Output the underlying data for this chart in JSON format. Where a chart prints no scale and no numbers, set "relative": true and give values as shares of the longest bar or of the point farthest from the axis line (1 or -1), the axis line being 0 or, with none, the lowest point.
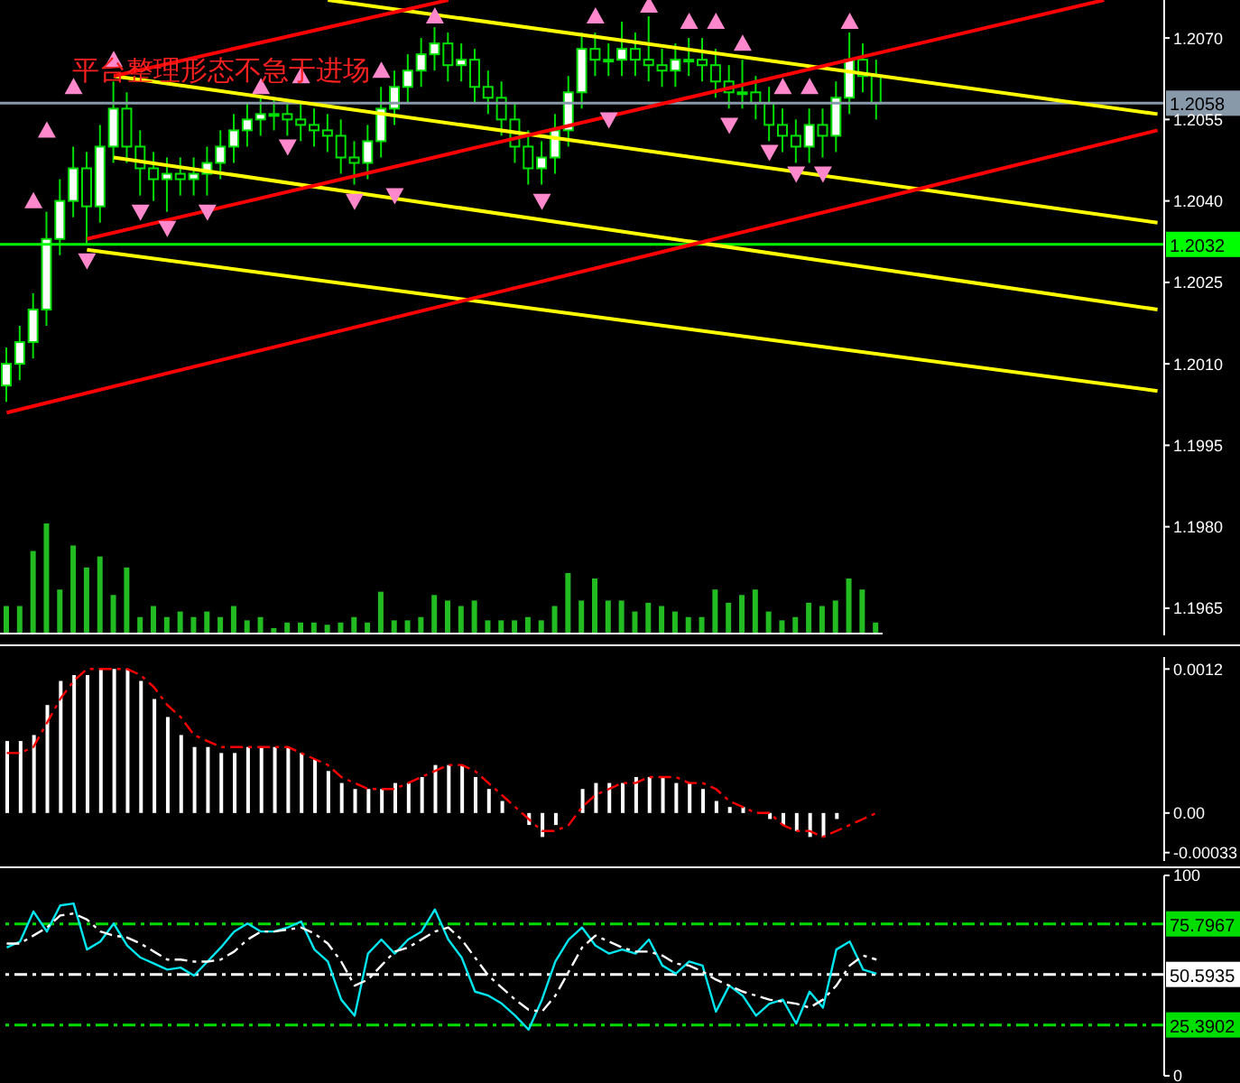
{
  "chart_data": [
    {
      "type": "candlestick",
      "color": "#00e000",
      "tick_labels": "y",
      "annotations": [
        "平台整理形态不急于进场"
      ],
      "categories": [
        null,
        null,
        null,
        null,
        null,
        null,
        null,
        null,
        null,
        null,
        null,
        null,
        null,
        null,
        null,
        null,
        null,
        null,
        null,
        null,
        null,
        null,
        null,
        null,
        null,
        null,
        null,
        null,
        null,
        null,
        null,
        null,
        null,
        null,
        null,
        null,
        null,
        null,
        null,
        null,
        null,
        null,
        null,
        null,
        null,
        null,
        null,
        null,
        null,
        null,
        null,
        null,
        null,
        null,
        null,
        null,
        null,
        null,
        null,
        null,
        null,
        null,
        null,
        null,
        null,
        null,
        null,
        null,
        null,
        null,
        null,
        null,
        null,
        null,
        null,
        null,
        null,
        null,
        null,
        null,
        null,
        null,
        null,
        null,
        null,
        null,
        null
      ],
      "ohlc": [
        [
          1.2006,
          1.2013,
          1.2003,
          1.201
        ],
        [
          1.201,
          1.2017,
          1.2007,
          1.2014
        ],
        [
          1.2014,
          1.2023,
          1.2011,
          1.202
        ],
        [
          1.202,
          1.2038,
          1.2017,
          1.2033
        ],
        [
          1.2033,
          1.2044,
          1.203,
          1.204
        ],
        [
          1.204,
          1.205,
          1.2037,
          1.2046
        ],
        [
          1.2046,
          1.2049,
          1.2032,
          1.2039
        ],
        [
          1.2039,
          1.2054,
          1.2036,
          1.205
        ],
        [
          1.205,
          1.2062,
          1.2047,
          1.2057
        ],
        [
          1.2057,
          1.206,
          1.2047,
          1.205
        ],
        [
          1.205,
          1.2053,
          1.2041,
          1.2046
        ],
        [
          1.2046,
          1.2049,
          1.204,
          1.2044
        ],
        [
          1.2044,
          1.2048,
          1.2038,
          1.2045
        ],
        [
          1.2045,
          1.2048,
          1.2041,
          1.2044
        ],
        [
          1.2044,
          1.2048,
          1.2041,
          1.2045
        ],
        [
          1.2045,
          1.205,
          1.2041,
          1.2047
        ],
        [
          1.2047,
          1.2053,
          1.2044,
          1.205
        ],
        [
          1.205,
          1.2056,
          1.2047,
          1.2053
        ],
        [
          1.2053,
          1.2058,
          1.205,
          1.2055
        ],
        [
          1.2055,
          1.2059,
          1.2052,
          1.2056
        ],
        [
          1.2056,
          1.2059,
          1.2053,
          1.2056
        ],
        [
          1.2056,
          1.2058,
          1.2052,
          1.2055
        ],
        [
          1.2055,
          1.2058,
          1.2051,
          1.2054
        ],
        [
          1.2054,
          1.2057,
          1.205,
          1.2053
        ],
        [
          1.2053,
          1.2056,
          1.2049,
          1.2052
        ],
        [
          1.2052,
          1.2055,
          1.2045,
          1.2048
        ],
        [
          1.2048,
          1.2051,
          1.2043,
          1.2047
        ],
        [
          1.2047,
          1.2054,
          1.2044,
          1.2051
        ],
        [
          1.2051,
          1.2061,
          1.2048,
          1.2057
        ],
        [
          1.2057,
          1.2064,
          1.2054,
          1.2061
        ],
        [
          1.2061,
          1.2067,
          1.2058,
          1.2064
        ],
        [
          1.2064,
          1.207,
          1.2061,
          1.2067
        ],
        [
          1.2067,
          1.2072,
          1.2064,
          1.2069
        ],
        [
          1.2069,
          1.2071,
          1.2062,
          1.2065
        ],
        [
          1.2065,
          1.2069,
          1.2062,
          1.2066
        ],
        [
          1.2066,
          1.2068,
          1.2058,
          1.2061
        ],
        [
          1.2061,
          1.2064,
          1.2056,
          1.2059
        ],
        [
          1.2059,
          1.2062,
          1.2052,
          1.2055
        ],
        [
          1.2055,
          1.2058,
          1.2047,
          1.205
        ],
        [
          1.205,
          1.2053,
          1.2043,
          1.2046
        ],
        [
          1.2046,
          1.2051,
          1.2043,
          1.2048
        ],
        [
          1.2048,
          1.2056,
          1.2045,
          1.2053
        ],
        [
          1.2053,
          1.2063,
          1.205,
          1.206
        ],
        [
          1.206,
          1.2071,
          1.2057,
          1.2068
        ],
        [
          1.2068,
          1.2071,
          1.2063,
          1.2066
        ],
        [
          1.2066,
          1.2069,
          1.2063,
          1.2066
        ],
        [
          1.2066,
          1.2073,
          1.2063,
          1.2068
        ],
        [
          1.2068,
          1.2071,
          1.2063,
          1.2066
        ],
        [
          1.2066,
          1.2074,
          1.2062,
          1.2065
        ],
        [
          1.2065,
          1.2068,
          1.2061,
          1.2064
        ],
        [
          1.2064,
          1.2069,
          1.2061,
          1.2066
        ],
        [
          1.2066,
          1.207,
          1.2063,
          1.2066
        ],
        [
          1.2066,
          1.207,
          1.2062,
          1.2065
        ],
        [
          1.2065,
          1.2068,
          1.2059,
          1.2062
        ],
        [
          1.2062,
          1.2065,
          1.2057,
          1.206
        ],
        [
          1.206,
          1.2066,
          1.2057,
          1.206
        ],
        [
          1.206,
          1.2063,
          1.2055,
          1.2058
        ],
        [
          1.2058,
          1.2061,
          1.2051,
          1.2054
        ],
        [
          1.2054,
          1.2057,
          1.2049,
          1.2052
        ],
        [
          1.2052,
          1.2055,
          1.2047,
          1.205
        ],
        [
          1.205,
          1.2057,
          1.2047,
          1.2054
        ],
        [
          1.2054,
          1.2057,
          1.2048,
          1.2052
        ],
        [
          1.2052,
          1.2062,
          1.2049,
          1.2059
        ],
        [
          1.2059,
          1.2071,
          1.2056,
          1.2066
        ],
        [
          1.2066,
          1.2069,
          1.206,
          1.2063
        ],
        [
          1.2063,
          1.2066,
          1.2055,
          1.2058
        ],
        null,
        null,
        null,
        null,
        null,
        null,
        null,
        null,
        null,
        null,
        null,
        null,
        null,
        null,
        null,
        null,
        null,
        null,
        null,
        null,
        null
      ],
      "series": [
        {
          "type": "line",
          "color": "#ffff00",
          "values": [
            null,
            null,
            null,
            null,
            null,
            null,
            null,
            null,
            null,
            null,
            null,
            null,
            null,
            null,
            null,
            null,
            null,
            null,
            null,
            null,
            null,
            null,
            null,
            null,
            1.2077,
            null,
            null,
            null,
            null,
            null,
            null,
            null,
            null,
            null,
            null,
            null,
            null,
            null,
            null,
            null,
            null,
            null,
            null,
            null,
            null,
            null,
            null,
            null,
            null,
            null,
            null,
            null,
            null,
            null,
            null,
            null,
            null,
            null,
            null,
            null,
            null,
            null,
            null,
            null,
            null,
            null,
            null,
            null,
            null,
            null,
            null,
            null,
            null,
            null,
            null,
            null,
            null,
            null,
            null,
            null,
            null,
            null,
            null,
            null,
            null,
            null,
            1.2056
          ]
        },
        {
          "type": "line",
          "color": "#ffff00",
          "values": [
            null,
            null,
            null,
            null,
            null,
            null,
            null,
            null,
            1.2063,
            null,
            null,
            null,
            null,
            null,
            null,
            null,
            null,
            null,
            null,
            null,
            null,
            null,
            null,
            null,
            null,
            null,
            null,
            null,
            null,
            null,
            null,
            null,
            null,
            null,
            null,
            null,
            null,
            null,
            null,
            null,
            null,
            null,
            null,
            null,
            null,
            null,
            null,
            null,
            null,
            null,
            null,
            null,
            null,
            null,
            null,
            null,
            null,
            null,
            null,
            null,
            null,
            null,
            null,
            null,
            null,
            null,
            null,
            null,
            null,
            null,
            null,
            null,
            null,
            null,
            null,
            null,
            null,
            null,
            null,
            null,
            null,
            null,
            null,
            null,
            null,
            null,
            1.2036
          ]
        },
        {
          "type": "line",
          "color": "#ffff00",
          "values": [
            null,
            null,
            null,
            null,
            null,
            null,
            null,
            null,
            1.2048,
            null,
            null,
            null,
            null,
            null,
            null,
            null,
            null,
            null,
            null,
            null,
            null,
            null,
            null,
            null,
            null,
            null,
            null,
            null,
            null,
            null,
            null,
            null,
            null,
            null,
            null,
            null,
            null,
            null,
            null,
            null,
            null,
            null,
            null,
            null,
            null,
            null,
            null,
            null,
            null,
            null,
            null,
            null,
            null,
            null,
            null,
            null,
            null,
            null,
            null,
            null,
            null,
            null,
            null,
            null,
            null,
            null,
            null,
            null,
            null,
            null,
            null,
            null,
            null,
            null,
            null,
            null,
            null,
            null,
            null,
            null,
            null,
            null,
            null,
            null,
            null,
            null,
            1.202
          ]
        },
        {
          "type": "line",
          "color": "#ffff00",
          "values": [
            null,
            null,
            null,
            null,
            null,
            null,
            1.2031,
            null,
            null,
            null,
            null,
            null,
            null,
            null,
            null,
            null,
            null,
            null,
            null,
            null,
            null,
            null,
            null,
            null,
            null,
            null,
            null,
            null,
            null,
            null,
            null,
            null,
            null,
            null,
            null,
            null,
            null,
            null,
            null,
            null,
            null,
            null,
            null,
            null,
            null,
            null,
            null,
            null,
            null,
            null,
            null,
            null,
            null,
            null,
            null,
            null,
            null,
            null,
            null,
            null,
            null,
            null,
            null,
            null,
            null,
            null,
            null,
            null,
            null,
            null,
            null,
            null,
            null,
            null,
            null,
            null,
            null,
            null,
            null,
            null,
            null,
            null,
            null,
            null,
            null,
            null,
            1.2005
          ]
        },
        {
          "type": "line",
          "color": "#ff0000",
          "values": [
            null,
            null,
            null,
            null,
            null,
            null,
            null,
            null,
            1.2063,
            null,
            null,
            null,
            null,
            null,
            null,
            null,
            null,
            null,
            null,
            null,
            null,
            null,
            null,
            null,
            null,
            null,
            null,
            null,
            null,
            null,
            null,
            null,
            null,
            1.2077,
            null,
            null,
            null,
            null,
            null,
            null,
            null,
            null,
            null,
            null,
            null,
            null,
            null,
            null,
            null,
            null,
            null,
            null,
            null,
            null,
            null,
            null,
            null,
            null,
            null,
            null,
            null,
            null,
            null,
            null,
            null,
            null,
            null,
            null,
            null,
            null,
            null,
            null,
            null,
            null,
            null,
            null,
            null,
            null,
            null,
            null,
            null,
            null,
            null,
            null,
            null,
            null,
            null
          ]
        },
        {
          "type": "line",
          "color": "#ff0000",
          "values": [
            null,
            null,
            null,
            null,
            null,
            null,
            1.2033,
            null,
            null,
            null,
            null,
            null,
            null,
            null,
            null,
            null,
            null,
            null,
            null,
            null,
            null,
            null,
            null,
            null,
            null,
            null,
            null,
            null,
            null,
            null,
            null,
            null,
            null,
            null,
            null,
            null,
            null,
            null,
            null,
            null,
            null,
            null,
            null,
            null,
            null,
            null,
            null,
            null,
            null,
            null,
            null,
            null,
            null,
            null,
            null,
            null,
            null,
            null,
            null,
            null,
            null,
            null,
            null,
            null,
            null,
            null,
            null,
            null,
            null,
            null,
            null,
            null,
            null,
            null,
            null,
            null,
            null,
            null,
            null,
            null,
            null,
            null,
            1.2077,
            null,
            null,
            null,
            null
          ]
        },
        {
          "type": "line",
          "color": "#ff0000",
          "values": [
            1.2001,
            null,
            null,
            null,
            null,
            null,
            null,
            null,
            null,
            null,
            null,
            null,
            null,
            null,
            null,
            null,
            null,
            null,
            null,
            null,
            null,
            null,
            null,
            null,
            null,
            null,
            null,
            null,
            null,
            null,
            null,
            null,
            null,
            null,
            null,
            null,
            null,
            null,
            null,
            null,
            null,
            null,
            null,
            null,
            null,
            null,
            null,
            null,
            null,
            null,
            null,
            null,
            null,
            null,
            null,
            null,
            null,
            null,
            null,
            null,
            null,
            null,
            null,
            null,
            null,
            null,
            null,
            null,
            null,
            null,
            null,
            null,
            null,
            null,
            null,
            null,
            null,
            null,
            null,
            null,
            null,
            null,
            null,
            null,
            null,
            null,
            1.2053
          ]
        },
        {
          "type": "scatter",
          "color": "#ff88cc",
          "marker": "triangle",
          "values": [
            null,
            null,
            1.204,
            1.2053,
            null,
            1.2061,
            null,
            null,
            1.2066,
            null,
            null,
            null,
            null,
            null,
            null,
            null,
            null,
            null,
            null,
            1.2061,
            null,
            null,
            1.2063,
            null,
            null,
            null,
            null,
            null,
            1.2064,
            null,
            null,
            null,
            1.2074,
            null,
            null,
            null,
            null,
            null,
            null,
            null,
            null,
            null,
            null,
            null,
            1.2074,
            null,
            null,
            null,
            1.2076,
            null,
            null,
            1.2073,
            null,
            1.2073,
            null,
            1.2069,
            null,
            null,
            1.2061,
            null,
            1.2061,
            null,
            null,
            1.2073,
            null,
            null,
            null,
            null,
            null,
            null,
            null,
            null,
            null,
            null,
            null,
            null,
            null,
            null,
            null,
            null,
            null,
            null,
            null,
            null,
            null,
            null,
            null
          ]
        },
        {
          "type": "scatter",
          "color": "#ff88cc",
          "marker": "triangle",
          "values": [
            null,
            null,
            null,
            null,
            null,
            null,
            1.2029,
            null,
            null,
            null,
            1.2038,
            null,
            1.2035,
            null,
            null,
            1.2038,
            null,
            null,
            null,
            null,
            null,
            1.205,
            null,
            null,
            null,
            null,
            1.204,
            null,
            null,
            1.2041,
            null,
            null,
            null,
            null,
            null,
            null,
            null,
            null,
            null,
            null,
            1.204,
            null,
            null,
            null,
            null,
            1.2055,
            null,
            null,
            null,
            null,
            null,
            null,
            null,
            null,
            1.2054,
            null,
            null,
            1.2049,
            null,
            1.2045,
            null,
            1.2045,
            null,
            null,
            null,
            null,
            null,
            null,
            null,
            null,
            null,
            null,
            null,
            null,
            null,
            null,
            null,
            null,
            null,
            null,
            null,
            null,
            null,
            null,
            null,
            null,
            null
          ]
        }
      ],
      "ylim": [
        1.196,
        1.2077
      ],
      "yticks": [
        {
          "value": 1.1965,
          "label": "1.1965"
        },
        {
          "value": 1.198,
          "label": "1.1980"
        },
        {
          "value": 1.1995,
          "label": "1.1995"
        },
        {
          "value": 1.201,
          "label": "1.2010"
        },
        {
          "value": 1.2025,
          "label": "1.2025"
        },
        {
          "value": 1.204,
          "label": "1.2040"
        },
        {
          "value": 1.2055,
          "label": "1.2055"
        },
        {
          "value": 1.207,
          "label": "1.2070"
        }
      ],
      "ref_lines": [
        {
          "axis": "y",
          "value": 1.2058,
          "label": "1.2058",
          "color": "#8899aa"
        },
        {
          "axis": "y",
          "value": 1.2032,
          "label": "1.2032",
          "color": "#00ff00"
        }
      ]
    },
    {
      "type": "bar",
      "relative": true,
      "tick_labels": false,
      "color": "#22bb22",
      "categories": [
        null,
        null,
        null,
        null,
        null,
        null,
        null,
        null,
        null,
        null,
        null,
        null,
        null,
        null,
        null,
        null,
        null,
        null,
        null,
        null,
        null,
        null,
        null,
        null,
        null,
        null,
        null,
        null,
        null,
        null,
        null,
        null,
        null,
        null,
        null,
        null,
        null,
        null,
        null,
        null,
        null,
        null,
        null,
        null,
        null,
        null,
        null,
        null,
        null,
        null,
        null,
        null,
        null,
        null,
        null,
        null,
        null,
        null,
        null,
        null,
        null,
        null,
        null,
        null,
        null,
        null
      ],
      "values": [
        0.25,
        0.25,
        0.75,
        1.0,
        0.4,
        0.8,
        0.6,
        0.7,
        0.35,
        0.6,
        0.15,
        0.25,
        0.15,
        0.2,
        0.15,
        0.2,
        0.15,
        0.25,
        0.12,
        0.15,
        0.05,
        0.1,
        0.1,
        0.1,
        0.08,
        0.1,
        0.15,
        0.1,
        0.38,
        0.12,
        0.12,
        0.15,
        0.35,
        0.3,
        0.25,
        0.3,
        0.12,
        0.12,
        0.12,
        0.15,
        0.12,
        0.25,
        0.55,
        0.3,
        0.5,
        0.3,
        0.3,
        0.2,
        0.28,
        0.25,
        0.2,
        0.15,
        0.15,
        0.4,
        0.28,
        0.35,
        0.4,
        0.2,
        0.12,
        0.15,
        0.28,
        0.25,
        0.3,
        0.5,
        0.4,
        0.1
      ]
    },
    {
      "type": "bar",
      "tick_labels": "y",
      "categories": [
        null,
        null,
        null,
        null,
        null,
        null,
        null,
        null,
        null,
        null,
        null,
        null,
        null,
        null,
        null,
        null,
        null,
        null,
        null,
        null,
        null,
        null,
        null,
        null,
        null,
        null,
        null,
        null,
        null,
        null,
        null,
        null,
        null,
        null,
        null,
        null,
        null,
        null,
        null,
        null,
        null,
        null,
        null,
        null,
        null,
        null,
        null,
        null,
        null,
        null,
        null,
        null,
        null,
        null,
        null,
        null,
        null,
        null,
        null,
        null,
        null,
        null,
        null,
        null,
        null,
        null,
        null,
        null,
        null,
        null,
        null,
        null,
        null,
        null,
        null,
        null,
        null,
        null,
        null,
        null,
        null,
        null,
        null,
        null,
        null,
        null,
        null
      ],
      "series": [
        {
          "type": "bar",
          "color": "#ffffff",
          "values": [
            0.0006,
            0.0006,
            0.00065,
            0.0009,
            0.0011,
            0.00115,
            0.00115,
            0.0012,
            0.0012,
            0.0012,
            0.0011,
            0.00095,
            0.0008,
            0.00065,
            0.00055,
            0.00055,
            0.0005,
            0.0005,
            0.00055,
            0.00055,
            0.00055,
            0.00055,
            0.0005,
            0.00045,
            0.00035,
            0.00025,
            0.0002,
            0.0002,
            0.0002,
            0.00025,
            0.00025,
            0.0003,
            0.0004,
            0.0004,
            0.0004,
            0.0003,
            0.0002,
            0.0001,
            0,
            -0.0001,
            -0.0002,
            -0.0001,
            0,
            0.0002,
            0.00025,
            0.00025,
            0.00025,
            0.0003,
            0.0003,
            0.0003,
            0.00025,
            0.00025,
            0.0002,
            0.0001,
            5e-05,
            5e-05,
            0,
            -5e-05,
            -0.0001,
            -0.00015,
            -0.0002,
            -0.0002,
            -5e-05,
            0,
            0,
            0,
            null,
            null,
            null,
            null,
            null,
            null,
            null,
            null,
            null,
            null,
            null,
            null,
            null,
            null,
            null,
            null,
            null,
            null,
            null,
            null,
            null
          ]
        },
        {
          "type": "line",
          "color": "#ff0000",
          "line_style": "dashed",
          "values": [
            0.0005,
            0.0005,
            0.00055,
            0.00075,
            0.00095,
            0.0011,
            0.0012,
            0.0012,
            0.0012,
            0.0012,
            0.00115,
            0.00105,
            0.0009,
            0.0008,
            0.00065,
            0.0006,
            0.00055,
            0.00055,
            0.00055,
            0.00055,
            0.00055,
            0.00055,
            0.0005,
            0.00045,
            0.0004,
            0.0003,
            0.00025,
            0.0002,
            0.0002,
            0.0002,
            0.00025,
            0.0003,
            0.00035,
            0.0004,
            0.0004,
            0.00035,
            0.00025,
            0.00015,
            5e-05,
            -5e-05,
            -0.00015,
            -0.00015,
            -0.0001,
            5e-05,
            0.00015,
            0.0002,
            0.00025,
            0.00025,
            0.0003,
            0.0003,
            0.0003,
            0.00025,
            0.00025,
            0.0002,
            0.0001,
            5e-05,
            0,
            0,
            -0.0001,
            -0.00015,
            -0.00015,
            -0.0002,
            -0.00015,
            -0.0001,
            -5e-05,
            0,
            null,
            null,
            null,
            null,
            null,
            null,
            null,
            null,
            null,
            null,
            null,
            null,
            null,
            null,
            null,
            null,
            null,
            null,
            null,
            null,
            null
          ]
        }
      ],
      "ylim": [
        -0.0004,
        0.0013
      ],
      "yticks": [
        {
          "value": -0.00033,
          "label": "-0.00033"
        },
        {
          "value": 0,
          "label": "0.00"
        },
        {
          "value": 0.0012,
          "label": "0.0012"
        }
      ]
    },
    {
      "type": "line",
      "tick_labels": "y",
      "categories": [
        null,
        null,
        null,
        null,
        null,
        null,
        null,
        null,
        null,
        null,
        null,
        null,
        null,
        null,
        null,
        null,
        null,
        null,
        null,
        null,
        null,
        null,
        null,
        null,
        null,
        null,
        null,
        null,
        null,
        null,
        null,
        null,
        null,
        null,
        null,
        null,
        null,
        null,
        null,
        null,
        null,
        null,
        null,
        null,
        null,
        null,
        null,
        null,
        null,
        null,
        null,
        null,
        null,
        null,
        null,
        null,
        null,
        null,
        null,
        null,
        null,
        null,
        null,
        null,
        null,
        null,
        null,
        null,
        null,
        null,
        null,
        null,
        null,
        null,
        null,
        null,
        null,
        null,
        null,
        null,
        null,
        null,
        null,
        null,
        null,
        null,
        null
      ],
      "series": [
        {
          "color": "#00e5ee",
          "values": [
            64,
            67,
            82,
            72,
            85,
            86,
            63,
            67,
            76,
            65,
            59,
            56,
            53,
            54,
            50,
            57,
            64,
            72,
            76,
            72,
            72,
            74,
            77,
            63,
            57,
            38,
            30,
            61,
            68,
            61,
            68,
            72,
            83,
            68,
            59,
            42,
            40,
            36,
            30,
            23,
            38,
            57,
            68,
            74,
            65,
            61,
            63,
            61,
            68,
            55,
            51,
            57,
            55,
            32,
            45,
            40,
            30,
            36,
            38,
            26,
            42,
            34,
            63,
            67,
            53,
            51,
            null,
            null,
            null,
            null,
            null,
            null,
            null,
            null,
            null,
            null,
            null,
            null,
            null,
            null,
            null,
            null,
            null,
            null,
            null,
            null,
            null
          ]
        },
        {
          "color": "#ffffff",
          "line_style": "dashed",
          "values": [
            66,
            66,
            70,
            74,
            80,
            81,
            78,
            72,
            70,
            69,
            66,
            62,
            58,
            58,
            57,
            57,
            58,
            62,
            68,
            72,
            72,
            73,
            74,
            71,
            66,
            57,
            45,
            48,
            55,
            62,
            64,
            68,
            72,
            74,
            68,
            59,
            50,
            44,
            38,
            33,
            32,
            40,
            52,
            64,
            70,
            67,
            64,
            62,
            62,
            60,
            56,
            55,
            52,
            48,
            45,
            42,
            40,
            38,
            37,
            36,
            34,
            38,
            45,
            55,
            60,
            58,
            null,
            null,
            null,
            null,
            null,
            null,
            null,
            null,
            null,
            null,
            null,
            null,
            null,
            null,
            null,
            null,
            null,
            null,
            null,
            null,
            null
          ]
        }
      ],
      "ylim": [
        0,
        100
      ],
      "yticks": [
        0,
        100
      ],
      "ref_lines": [
        {
          "axis": "y",
          "value": 75.7967,
          "label": "75.7967",
          "color": "#00dd00",
          "line_style": "dashed"
        },
        {
          "axis": "y",
          "value": 50.5935,
          "label": "50.5935",
          "color": "#ffffff",
          "line_style": "dashed"
        },
        {
          "axis": "y",
          "value": 25.3902,
          "label": "25.3902",
          "color": "#00dd00",
          "line_style": "dashed"
        }
      ]
    }
  ]
}
